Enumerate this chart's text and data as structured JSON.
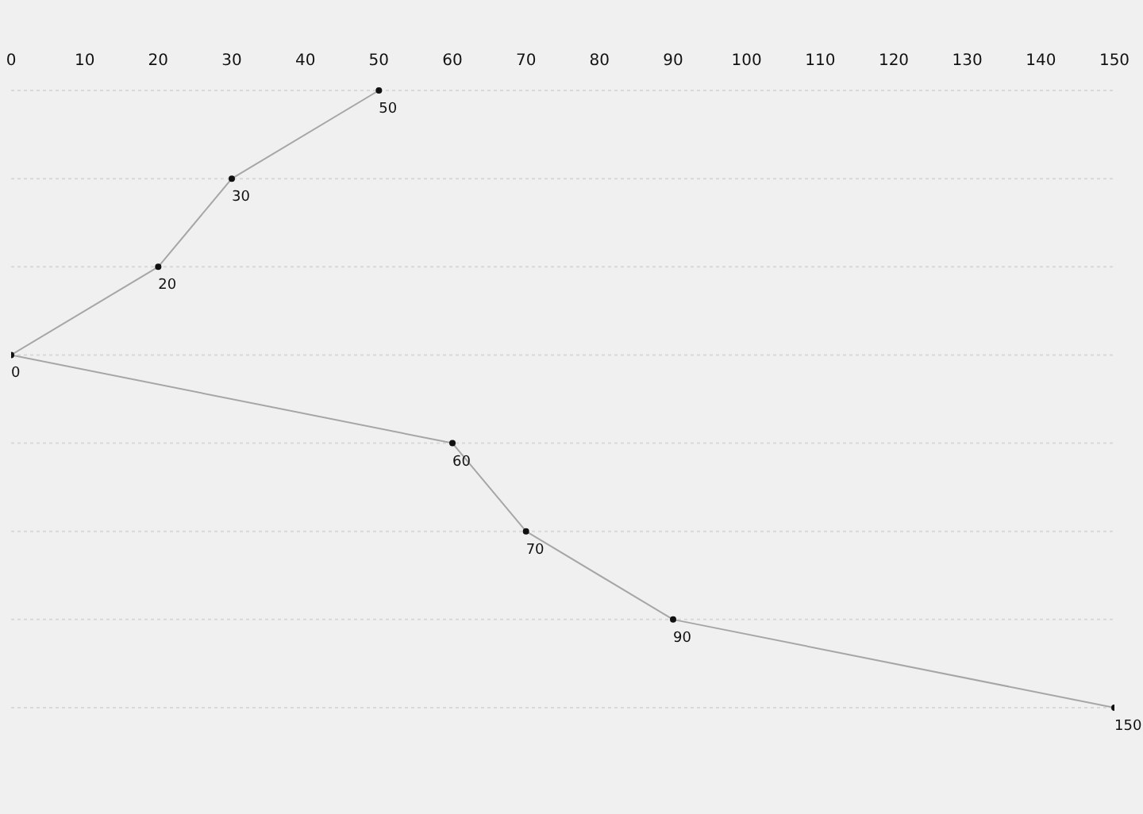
{
  "chart_data": {
    "type": "line",
    "orientation": "horizontal",
    "categories": [
      null,
      null,
      null,
      null,
      null,
      null,
      null,
      null
    ],
    "values": [
      50,
      30,
      20,
      0,
      60,
      70,
      90,
      150
    ],
    "color": "#a6a6a6",
    "xlim": [
      0,
      150
    ],
    "xticks": [
      0,
      10,
      20,
      30,
      40,
      50,
      60,
      70,
      80,
      90,
      100,
      110,
      120,
      130,
      140,
      150
    ],
    "grid": "y",
    "marker": "circle",
    "line_style": "solid",
    "data_labels": true,
    "tick_labels": "x"
  }
}
